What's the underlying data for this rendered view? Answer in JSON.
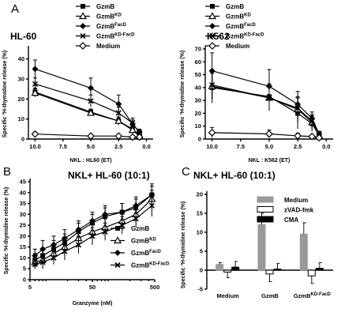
{
  "panel_letters": {
    "a": "A",
    "b": "B",
    "c": "C"
  },
  "colors": {
    "series": "#000000",
    "medium_bar": "#999999",
    "zvad_bar": "#ffffff",
    "cma_bar": "#000000"
  },
  "chart_data": [
    {
      "id": "A1",
      "type": "line",
      "title": "HL-60",
      "xlabel": "NKL : HL60 (ET)",
      "ylabel": "Specific ³H-thymidine release (%)",
      "xlim": [
        10.6,
        -0.6
      ],
      "ylim": [
        0,
        45
      ],
      "x": [
        10.0,
        5.0,
        2.5,
        1.25,
        0.625
      ],
      "xticks": [
        "10.0",
        "7.5",
        "5.0",
        "2.5",
        "0.0"
      ],
      "yticks": [
        0,
        10,
        20,
        30,
        40
      ],
      "grid": false,
      "series": [
        {
          "name": "GzmB",
          "marker": "square",
          "values": [
            23.5,
            13.5,
            9,
            5,
            2
          ],
          "err": [
            2,
            1.5,
            2,
            1.5,
            1
          ]
        },
        {
          "name": "GzmB",
          "sup": "KD",
          "marker": "triangle",
          "values": [
            23,
            13,
            9,
            4.5,
            1.5
          ],
          "err": [
            2,
            1.5,
            1.5,
            1.5,
            1
          ]
        },
        {
          "name": "GzmB",
          "sup": "FacD",
          "marker": "diamond",
          "values": [
            35,
            25.5,
            17.5,
            7.5,
            3.5
          ],
          "err": [
            4.5,
            5,
            4.5,
            2,
            1.5
          ]
        },
        {
          "name": "GzmB",
          "sup": "KD-FacD",
          "marker": "cross",
          "values": [
            27.5,
            19,
            13,
            8,
            3
          ],
          "err": [
            3,
            3,
            3,
            2.5,
            1.5
          ]
        },
        {
          "name": "Medium",
          "marker": "open-diamond",
          "values": [
            2.5,
            1.5,
            1.5,
            1,
            1
          ],
          "err": [
            0.5,
            0.5,
            0.5,
            0.5,
            0.5
          ]
        }
      ]
    },
    {
      "id": "A2",
      "type": "line",
      "title": "K562",
      "xlabel": "NKL : K562 (ET)",
      "ylabel": "Specific ³H-thymidine release (%)",
      "xlim": [
        10.6,
        -0.6
      ],
      "ylim": [
        0,
        70
      ],
      "x": [
        10.0,
        5.0,
        2.5,
        1.25,
        0.625
      ],
      "xticks": [
        "10.0",
        "7.5",
        "5.0",
        "2.5",
        "0.0"
      ],
      "yticks": [
        0,
        10,
        20,
        30,
        40,
        50,
        60,
        70
      ],
      "grid": false,
      "series": [
        {
          "name": "GzmB",
          "marker": "square",
          "values": [
            40,
            33,
            20,
            12,
            3
          ],
          "err": [
            12,
            10,
            12,
            6,
            2
          ]
        },
        {
          "name": "GzmB",
          "sup": "KD",
          "marker": "triangle",
          "values": [
            41,
            32,
            23,
            13,
            2.5
          ],
          "err": [
            10,
            10,
            10,
            5,
            2
          ]
        },
        {
          "name": "GzmB",
          "sup": "FacD",
          "marker": "diamond",
          "values": [
            53,
            41,
            27,
            16,
            4
          ],
          "err": [
            14,
            13,
            10,
            5,
            2
          ]
        },
        {
          "name": "GzmB",
          "sup": "KD-FacD",
          "marker": "cross",
          "values": [
            42,
            32,
            24,
            14,
            4
          ],
          "err": [
            11,
            10,
            8,
            5,
            2
          ]
        },
        {
          "name": "Medium",
          "marker": "open-diamond",
          "values": [
            5,
            4,
            2.5,
            2,
            1
          ],
          "err": [
            4,
            3,
            2,
            1.5,
            1
          ]
        }
      ]
    },
    {
      "id": "B",
      "type": "line",
      "title": "NKL+ HL-60 (10:1)",
      "xlabel": "Granzyme (nM)",
      "ylabel": "Specific ³H-thymidine release (%)",
      "xscale": "log",
      "xlim": [
        5,
        500
      ],
      "ylim": [
        0,
        45
      ],
      "x": [
        6,
        8,
        12,
        18,
        30,
        50,
        80,
        150,
        250,
        450
      ],
      "xticks": [
        5,
        50,
        500
      ],
      "yticks": [
        0,
        5,
        10,
        15,
        20,
        25,
        30,
        35,
        40,
        45
      ],
      "grid": false,
      "series": [
        {
          "name": "GzmB",
          "marker": "square",
          "values": [
            9,
            11,
            14,
            17,
            22,
            26,
            29,
            31,
            33,
            39
          ],
          "err": [
            3,
            3,
            4,
            4,
            4,
            4,
            4,
            4,
            4,
            4
          ]
        },
        {
          "name": "GzmB",
          "sup": "KD",
          "marker": "triangle",
          "values": [
            8,
            9,
            12,
            15,
            19,
            22,
            24,
            27,
            30,
            37
          ],
          "err": [
            3,
            3,
            3,
            4,
            4,
            4,
            4,
            4,
            4,
            4
          ]
        },
        {
          "name": "GzmB",
          "sup": "FacD",
          "marker": "diamond",
          "values": [
            11,
            14,
            16,
            19,
            23,
            27,
            30,
            31,
            34,
            39
          ],
          "err": [
            3,
            4,
            4,
            4,
            4,
            4,
            4,
            4,
            4,
            5
          ]
        },
        {
          "name": "GzmB",
          "sup": "KD-FacD",
          "marker": "cross",
          "values": [
            7,
            8,
            10,
            13,
            16,
            20,
            22,
            25,
            28,
            34
          ],
          "err": [
            2,
            3,
            3,
            4,
            4,
            4,
            4,
            4,
            4,
            5
          ]
        }
      ]
    },
    {
      "id": "C",
      "type": "bar",
      "title": "NKL+ HL-60 (10:1)",
      "ylabel": "Specific ³H-thymidine release (%)",
      "ylim": [
        -5,
        20
      ],
      "categories": [
        {
          "name": "Medium"
        },
        {
          "name": "GzmB"
        },
        {
          "name": "GzmB",
          "sup": "KD-FacD"
        }
      ],
      "yticks": [
        -5,
        0,
        5,
        10,
        15,
        20
      ],
      "grid": false,
      "series": [
        {
          "name": "Medium",
          "values": [
            1.5,
            12,
            9.5
          ],
          "err": [
            0.5,
            3,
            3
          ]
        },
        {
          "name": "zVAD-fmk",
          "values": [
            -0.5,
            -1,
            -1.5
          ],
          "err": [
            1.5,
            2,
            2
          ]
        },
        {
          "name": "CMA",
          "values": [
            0.8,
            0.3,
            0.5
          ],
          "err": [
            1.5,
            1.5,
            1.5
          ]
        }
      ]
    }
  ]
}
